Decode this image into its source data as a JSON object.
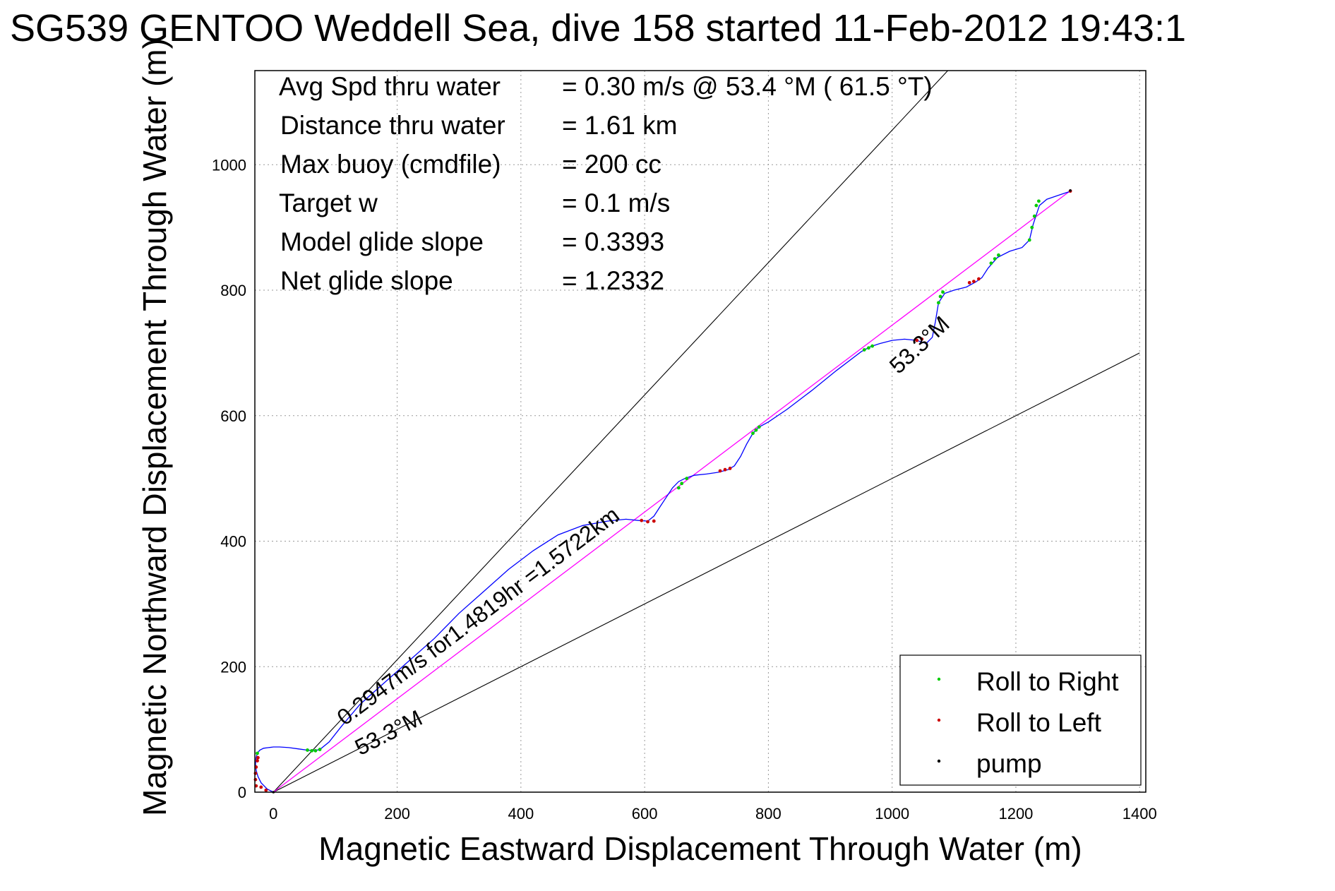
{
  "chart_data": {
    "type": "line",
    "title": "SG539 GENTOO Weddell Sea, dive 158 started 11-Feb-2012 19:43:1",
    "xlabel": "Magnetic Eastward Displacement Through Water (m)",
    "ylabel": "Magnetic Northward Displacement Through Water (m)",
    "xlim": [
      -30,
      1410
    ],
    "ylim": [
      0,
      1150
    ],
    "xticks": [
      0,
      200,
      400,
      600,
      800,
      1000,
      1200,
      1400
    ],
    "yticks": [
      0,
      200,
      400,
      600,
      800,
      1000
    ],
    "grid": true,
    "legend_position": "bottom-right",
    "summary": [
      {
        "label": "Avg Spd thru water",
        "value": "=  0.30 m/s @  53.4 °M ( 61.5 °T)"
      },
      {
        "label": "Distance thru water",
        "value": "=  1.61 km"
      },
      {
        "label": "Max buoy (cmdfile)",
        "value": "= 200 cc"
      },
      {
        "label": "Target w",
        "value": "= 0.1 m/s"
      },
      {
        "label": "Model glide slope",
        "value": "= 0.3393"
      },
      {
        "label": "Net glide slope",
        "value": "= 1.2332"
      }
    ],
    "annotations": [
      {
        "text": "0.2947m/s for1.4819hr =1.5722km",
        "x": 115,
        "y": 105,
        "angle_deg": 37
      },
      {
        "text": "53.3°M",
        "x": 140,
        "y": 58,
        "angle_deg": 27
      },
      {
        "text": "53.3°M",
        "x": 1010,
        "y": 665,
        "angle_deg": 43
      }
    ],
    "reference_lines": [
      {
        "name": "upper heading bound",
        "x": [
          0,
          1090
        ],
        "y": [
          0,
          1150
        ]
      },
      {
        "name": "lower heading bound",
        "x": [
          0,
          1400
        ],
        "y": [
          0,
          700
        ]
      },
      {
        "name": "net course",
        "x": [
          0,
          1290
        ],
        "y": [
          0,
          960
        ]
      }
    ],
    "track": {
      "x": [
        0,
        -10,
        -20,
        -25,
        -28,
        -29,
        -28,
        -26,
        -22,
        -16,
        -8,
        0,
        10,
        25,
        40,
        55,
        65,
        75,
        90,
        110,
        140,
        180,
        220,
        260,
        300,
        340,
        380,
        420,
        460,
        500,
        540,
        570,
        590,
        605,
        615,
        625,
        635,
        645,
        655,
        665,
        680,
        700,
        720,
        735,
        745,
        755,
        765,
        775,
        785,
        800,
        830,
        870,
        910,
        950,
        965,
        980,
        1000,
        1020,
        1040,
        1055,
        1065,
        1070,
        1075,
        1085,
        1100,
        1120,
        1135,
        1145,
        1155,
        1170,
        1190,
        1210,
        1222,
        1228,
        1238,
        1250,
        1265,
        1280,
        1290
      ],
      "y": [
        0,
        5,
        15,
        25,
        35,
        45,
        55,
        62,
        67,
        70,
        71,
        72,
        72,
        71,
        69,
        67,
        66,
        68,
        80,
        105,
        140,
        175,
        210,
        245,
        285,
        320,
        355,
        385,
        410,
        425,
        432,
        435,
        433,
        432,
        440,
        455,
        470,
        485,
        495,
        500,
        505,
        507,
        510,
        514,
        520,
        535,
        555,
        572,
        582,
        590,
        610,
        640,
        672,
        702,
        710,
        715,
        720,
        722,
        720,
        715,
        725,
        750,
        780,
        795,
        800,
        805,
        813,
        820,
        835,
        852,
        862,
        868,
        880,
        905,
        935,
        945,
        950,
        955,
        958
      ]
    },
    "roll_right_points": [
      [
        -26,
        62
      ],
      [
        55,
        67
      ],
      [
        62,
        66
      ],
      [
        68,
        66
      ],
      [
        75,
        68
      ],
      [
        655,
        485
      ],
      [
        660,
        492
      ],
      [
        668,
        500
      ],
      [
        775,
        572
      ],
      [
        780,
        577
      ],
      [
        785,
        582
      ],
      [
        955,
        705
      ],
      [
        962,
        708
      ],
      [
        968,
        711
      ],
      [
        1075,
        780
      ],
      [
        1078,
        790
      ],
      [
        1082,
        797
      ],
      [
        1160,
        843
      ],
      [
        1166,
        850
      ],
      [
        1172,
        856
      ],
      [
        1222,
        880
      ],
      [
        1226,
        900
      ],
      [
        1230,
        918
      ],
      [
        1233,
        935
      ],
      [
        1237,
        942
      ]
    ],
    "roll_left_points": [
      [
        -28,
        10
      ],
      [
        -29,
        20
      ],
      [
        -29,
        30
      ],
      [
        -28,
        40
      ],
      [
        -26,
        50
      ],
      [
        -25,
        55
      ],
      [
        -20,
        8
      ],
      [
        -12,
        3
      ],
      [
        595,
        433
      ],
      [
        605,
        431
      ],
      [
        615,
        432
      ],
      [
        722,
        512
      ],
      [
        730,
        514
      ],
      [
        738,
        516
      ],
      [
        1040,
        720
      ],
      [
        1048,
        722
      ],
      [
        1125,
        812
      ],
      [
        1132,
        814
      ],
      [
        1140,
        818
      ],
      [
        1288,
        958
      ]
    ],
    "pump_points": [
      [
        0,
        0
      ],
      [
        555,
        433
      ],
      [
        1288,
        959
      ]
    ],
    "series": [
      {
        "name": "Roll to Right",
        "color": "#00cc00"
      },
      {
        "name": "Roll to Left",
        "color": "#cc0000"
      },
      {
        "name": "pump",
        "color": "#000000"
      }
    ]
  },
  "colors": {
    "track": "#0000ff",
    "course_line": "#ff00ff",
    "grid": "#999999"
  }
}
